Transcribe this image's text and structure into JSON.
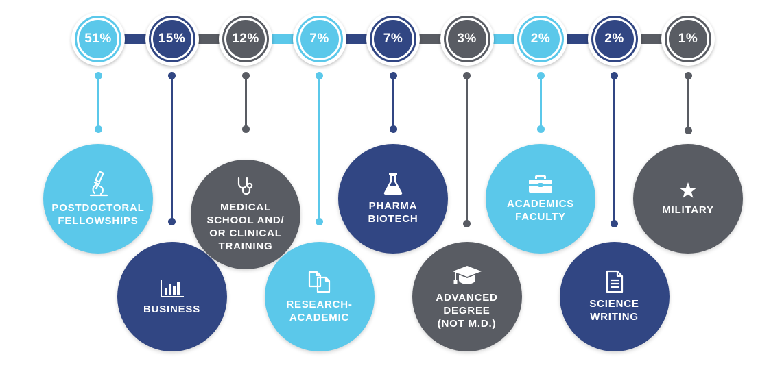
{
  "colors": {
    "light": "#5bc8ea",
    "navy": "#314683",
    "gray": "#595c63",
    "white": "#ffffff"
  },
  "items": [
    {
      "percent": "51%",
      "value": 51,
      "label": "POSTDOCTORAL\nFELLOWSHIPS",
      "color": "light",
      "icon": "microscope-icon"
    },
    {
      "percent": "15%",
      "value": 15,
      "label": "BUSINESS",
      "color": "navy",
      "icon": "bar-chart-icon"
    },
    {
      "percent": "12%",
      "value": 12,
      "label": "MEDICAL\nSCHOOL AND/\nOR CLINICAL\nTRAINING",
      "color": "gray",
      "icon": "stethoscope-icon"
    },
    {
      "percent": "7%",
      "value": 7,
      "label": "RESEARCH-\nACADEMIC",
      "color": "light",
      "icon": "documents-icon"
    },
    {
      "percent": "7%",
      "value": 7,
      "label": "PHARMA\nBIOTECH",
      "color": "navy",
      "icon": "flask-icon"
    },
    {
      "percent": "3%",
      "value": 3,
      "label": "ADVANCED\nDEGREE\n(NOT M.D.)",
      "color": "gray",
      "icon": "graduation-cap-icon"
    },
    {
      "percent": "2%",
      "value": 2,
      "label": "ACADEMICS\nFACULTY",
      "color": "light",
      "icon": "briefcase-icon"
    },
    {
      "percent": "2%",
      "value": 2,
      "label": "SCIENCE\nWRITING",
      "color": "navy",
      "icon": "document-icon"
    },
    {
      "percent": "1%",
      "value": 1,
      "label": "MILITARY",
      "color": "gray",
      "icon": "star-icon"
    }
  ]
}
